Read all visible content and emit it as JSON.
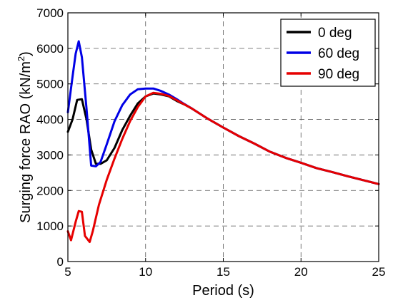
{
  "chart_data": {
    "type": "line",
    "xlabel": "Period (s)",
    "ylabel": "Surging force RAO (kN/m",
    "ylabel_sup": "2",
    "ylabel_close": ")",
    "xlim": [
      5,
      25
    ],
    "ylim": [
      0,
      7000
    ],
    "xticks": [
      5,
      10,
      15,
      20,
      25
    ],
    "yticks": [
      0,
      1000,
      2000,
      3000,
      4000,
      5000,
      6000,
      7000
    ],
    "xtick_labels": [
      "5",
      "10",
      "15",
      "20",
      "25"
    ],
    "ytick_labels": [
      "0",
      "1000",
      "2000",
      "3000",
      "4000",
      "5000",
      "6000",
      "7000"
    ],
    "grid": true,
    "legend_position": "top-right",
    "series": [
      {
        "name": "0 deg",
        "color": "#000000",
        "points": [
          [
            5,
            3650
          ],
          [
            5.3,
            4000
          ],
          [
            5.6,
            4550
          ],
          [
            5.9,
            4570
          ],
          [
            6.2,
            4000
          ],
          [
            6.5,
            3150
          ],
          [
            6.8,
            2750
          ],
          [
            7.1,
            2750
          ],
          [
            7.5,
            2850
          ],
          [
            8,
            3200
          ],
          [
            8.5,
            3700
          ],
          [
            9,
            4100
          ],
          [
            9.5,
            4450
          ],
          [
            10,
            4650
          ],
          [
            10.5,
            4730
          ],
          [
            11,
            4700
          ],
          [
            11.5,
            4650
          ],
          [
            12,
            4520
          ],
          [
            12.5,
            4420
          ],
          [
            13,
            4300
          ],
          [
            14,
            4020
          ],
          [
            15,
            3770
          ],
          [
            16,
            3530
          ],
          [
            17,
            3320
          ],
          [
            18,
            3090
          ],
          [
            19,
            2920
          ],
          [
            20,
            2780
          ],
          [
            21,
            2630
          ],
          [
            22,
            2520
          ],
          [
            23,
            2400
          ],
          [
            24,
            2290
          ],
          [
            25,
            2180
          ]
        ]
      },
      {
        "name": "60 deg",
        "color": "#0000e6",
        "points": [
          [
            5,
            4200
          ],
          [
            5.3,
            5200
          ],
          [
            5.5,
            5850
          ],
          [
            5.7,
            6200
          ],
          [
            5.9,
            5750
          ],
          [
            6.2,
            4300
          ],
          [
            6.5,
            2700
          ],
          [
            6.8,
            2680
          ],
          [
            7.1,
            2800
          ],
          [
            7.5,
            3300
          ],
          [
            8,
            3950
          ],
          [
            8.5,
            4400
          ],
          [
            9,
            4700
          ],
          [
            9.5,
            4850
          ],
          [
            10,
            4870
          ],
          [
            10.5,
            4870
          ],
          [
            11,
            4800
          ],
          [
            11.5,
            4700
          ],
          [
            12,
            4570
          ],
          [
            12.5,
            4430
          ],
          [
            13,
            4300
          ],
          [
            14,
            4020
          ],
          [
            15,
            3770
          ],
          [
            16,
            3530
          ],
          [
            17,
            3320
          ],
          [
            18,
            3090
          ],
          [
            19,
            2920
          ],
          [
            20,
            2780
          ],
          [
            21,
            2630
          ],
          [
            22,
            2520
          ],
          [
            23,
            2400
          ],
          [
            24,
            2290
          ],
          [
            25,
            2180
          ]
        ]
      },
      {
        "name": "90 deg",
        "color": "#e60000",
        "points": [
          [
            5,
            850
          ],
          [
            5.2,
            600
          ],
          [
            5.5,
            1120
          ],
          [
            5.7,
            1420
          ],
          [
            5.9,
            1400
          ],
          [
            6.1,
            720
          ],
          [
            6.4,
            550
          ],
          [
            6.6,
            850
          ],
          [
            7,
            1600
          ],
          [
            7.5,
            2300
          ],
          [
            8,
            2900
          ],
          [
            8.5,
            3450
          ],
          [
            9,
            3950
          ],
          [
            9.5,
            4350
          ],
          [
            10,
            4650
          ],
          [
            10.5,
            4750
          ],
          [
            11,
            4720
          ],
          [
            11.5,
            4660
          ],
          [
            12,
            4540
          ],
          [
            12.5,
            4420
          ],
          [
            13,
            4300
          ],
          [
            14,
            4020
          ],
          [
            15,
            3770
          ],
          [
            16,
            3530
          ],
          [
            17,
            3320
          ],
          [
            18,
            3090
          ],
          [
            19,
            2920
          ],
          [
            20,
            2780
          ],
          [
            21,
            2630
          ],
          [
            22,
            2520
          ],
          [
            23,
            2400
          ],
          [
            24,
            2290
          ],
          [
            25,
            2180
          ]
        ]
      }
    ]
  }
}
